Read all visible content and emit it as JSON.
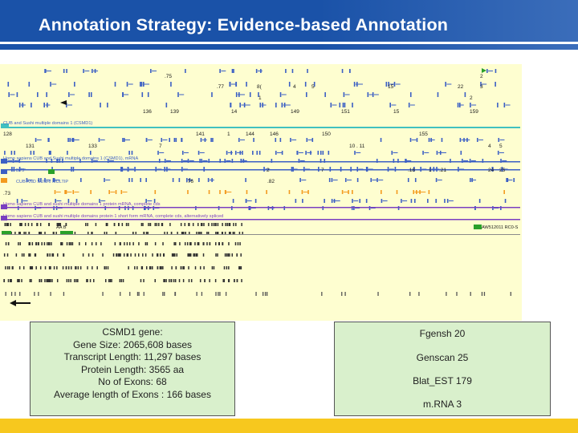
{
  "slide": {
    "title": "Annotation Strategy: Evidence-based Annotation"
  },
  "browser": {
    "background_color": "#fefed0",
    "track_labels": [
      {
        "id": "csmd1-domains",
        "text": "CUB and Sushi multiple domains 1 (CSMD1)"
      },
      {
        "id": "csmd1-mrna",
        "text": "Homo sapiens CUB and Sushi multiple domains 1 (CSMD1), mRNA"
      },
      {
        "id": "bf9",
        "text": "BF9"
      },
      {
        "id": "cub-sushi-multip",
        "text": "CUB AND SUSHI MULTIP"
      },
      {
        "id": "protein-mrna",
        "text": "Homo sapiens CUB and sushi multiple domains 1 protein mRNA, complete cds"
      },
      {
        "id": "short-form",
        "text": "Homo sapiens CUB and sushi multiple domains protein 1 short form mRNA, complete cds, alternatively spliced"
      },
      {
        "id": "aa-b",
        "text": "AA B"
      },
      {
        "id": "aw",
        "text": "AW512011 RC0-S"
      }
    ],
    "numbers": [
      {
        "text": ".75"
      },
      {
        "text": "2"
      },
      {
        "text": ".77"
      },
      {
        "text": "8("
      },
      {
        "text": "4"
      },
      {
        "text": "5"
      },
      {
        "text": "15"
      },
      {
        "text": "22"
      },
      {
        "text": "3"
      },
      {
        "text": "1"
      },
      {
        "text": "2"
      },
      {
        "text": "136"
      },
      {
        "text": "139"
      },
      {
        "text": "14"
      },
      {
        "text": "149"
      },
      {
        "text": "151"
      },
      {
        "text": "15"
      },
      {
        "text": "159"
      },
      {
        "text": "141"
      },
      {
        "text": "1"
      },
      {
        "text": "144"
      },
      {
        "text": "146"
      },
      {
        "text": "150"
      },
      {
        "text": "155"
      },
      {
        "text": "128"
      },
      {
        "text": "131"
      },
      {
        "text": "133"
      },
      {
        "text": "7"
      },
      {
        "text": "10 . 11"
      },
      {
        "text": "4"
      },
      {
        "text": "5"
      },
      {
        "text": "2"
      },
      {
        "text": "7"
      },
      {
        "text": ".18"
      },
      {
        "text": "1"
      },
      {
        "text": ".21"
      },
      {
        "text": "24"
      },
      {
        "text": "25"
      },
      {
        "text": ".76"
      },
      {
        "text": ".82"
      },
      {
        "text": ".73"
      }
    ]
  },
  "gene_info": {
    "lines": [
      "CSMD1 gene:",
      "Gene Size: 2065,608 bases",
      "Transcript Length: 11,297 bases",
      "Protein Length: 3565 aa",
      "No of Exons: 68",
      "Average length of Exons : 166 bases"
    ]
  },
  "evidence": {
    "items": [
      "Fgensh  20",
      "Genscan 25",
      "Blat_EST 179",
      "m.RNA 3"
    ]
  },
  "colors": {
    "title_bar": "#1a52a8",
    "footer": "#f7c81e",
    "box_fill": "#d9f0cc",
    "feature_blue": "#3b5fc4",
    "feature_teal": "#40c0c0",
    "feature_purple": "#7a3fc0",
    "feature_orange": "#f39a1e",
    "feature_green": "#2aa02a"
  }
}
